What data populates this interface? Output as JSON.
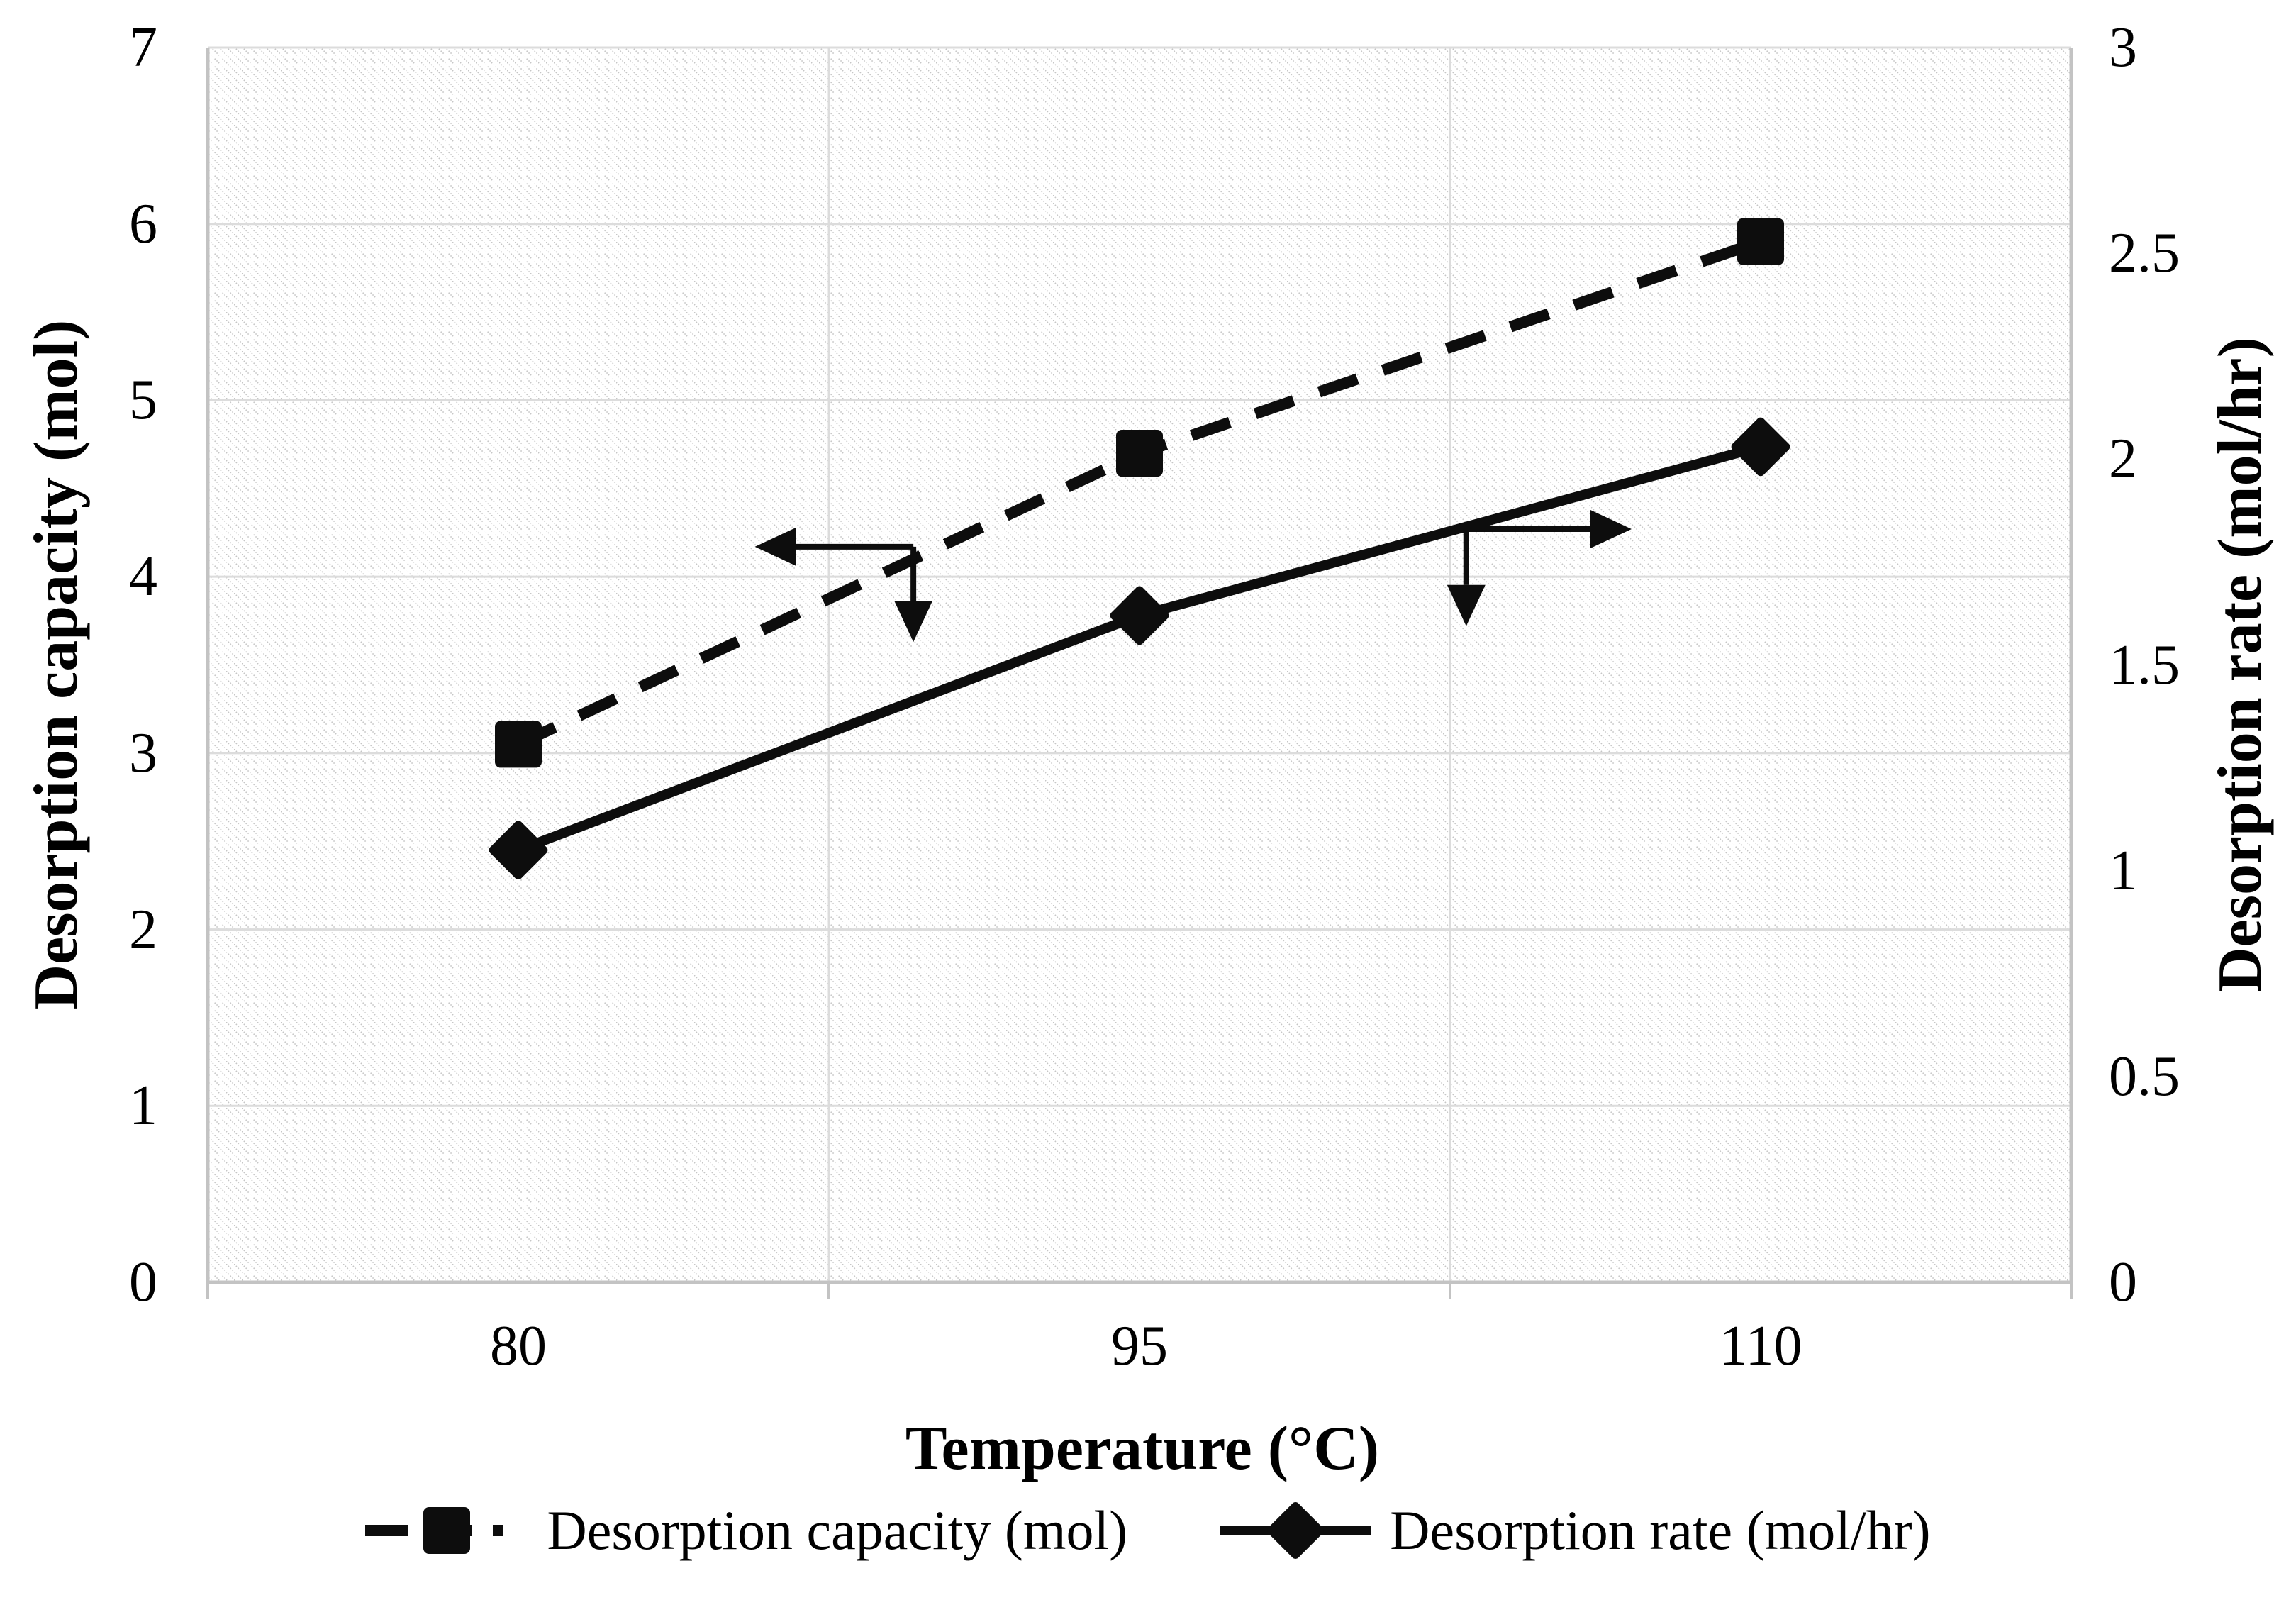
{
  "figure": {
    "x_axis_title": "Temperature (°C)",
    "left_axis_title": "Desorption capacity (mol)",
    "right_axis_title": "Desorption rate (mol/hr)"
  },
  "chart_data": {
    "type": "line",
    "title": "",
    "x": {
      "label": "Temperature (°C)",
      "categories": [
        "80",
        "95",
        "110"
      ]
    },
    "left_axis": {
      "label": "Desorption capacity (mol)",
      "min": 0,
      "max": 7,
      "tick_step": 1,
      "ticks": [
        "0",
        "1",
        "2",
        "3",
        "4",
        "5",
        "6",
        "7"
      ]
    },
    "right_axis": {
      "label": "Desorption rate (mol/hr)",
      "min": 0,
      "max": 3,
      "tick_step": 0.5,
      "ticks": [
        "0",
        "0.5",
        "1",
        "1.5",
        "2",
        "2.5",
        "3"
      ]
    },
    "series": [
      {
        "name": "Desorption capacity (mol)",
        "axis": "left",
        "line_style": "dashed",
        "marker": "square",
        "values": [
          3.05,
          4.7,
          5.9
        ]
      },
      {
        "name": "Desorption rate (mol/hr)",
        "axis": "right",
        "line_style": "solid",
        "marker": "diamond",
        "values": [
          1.05,
          1.62,
          2.03
        ]
      }
    ],
    "annotations": [
      {
        "points_to": "left-axis",
        "h": {
          "x1": 0.947,
          "x2": 1.136,
          "y": 4.17
        },
        "v": {
          "y2": 3.63
        }
      },
      {
        "points_to": "right-axis",
        "h": {
          "x1": 2.026,
          "x2": 2.226,
          "y": 4.27
        },
        "v": {
          "y2": 3.72
        }
      }
    ],
    "grid": {
      "horizontal": true,
      "vertical_category_boundaries": true
    },
    "plot_background": "diagonal-hatch",
    "legend_position": "bottom",
    "colors": {
      "series": "#0d0d0d",
      "gridline": "#dcdcdc",
      "axis": "#c3c3c3",
      "hatch": "#c6c6c6",
      "text": "#000000"
    }
  }
}
